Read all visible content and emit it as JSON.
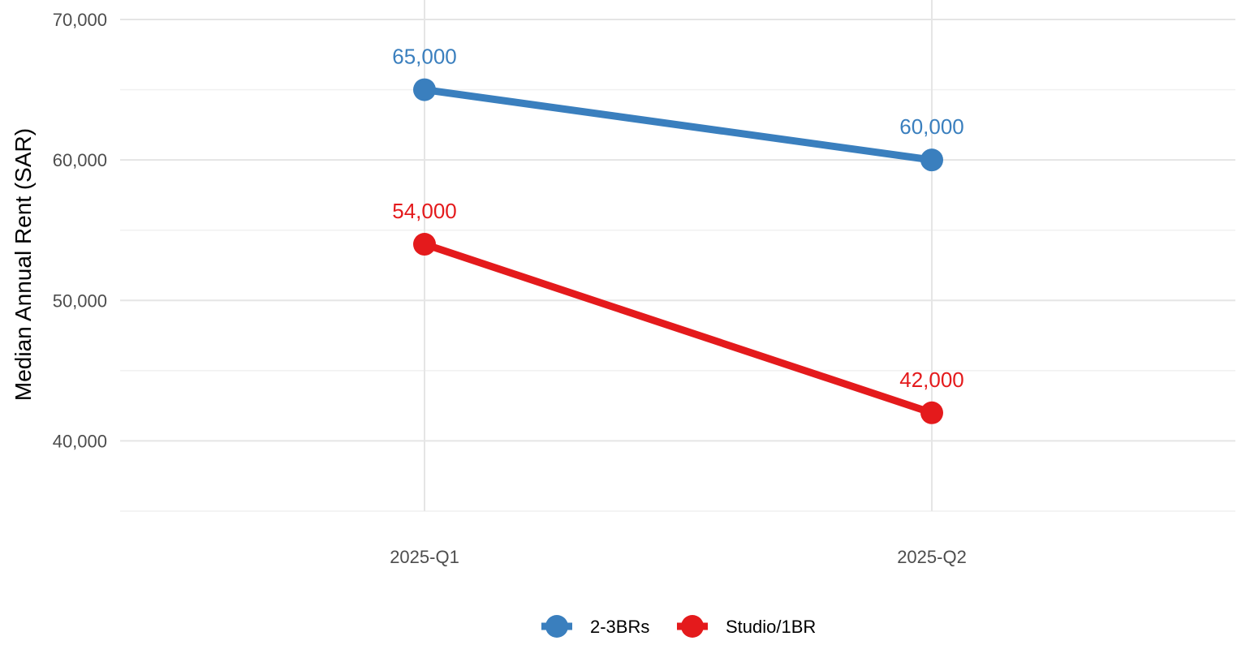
{
  "chart_data": {
    "type": "line",
    "title": "",
    "xlabel": "",
    "ylabel": "Median Annual Rent (SAR)",
    "categories": [
      "2025-Q1",
      "2025-Q2"
    ],
    "ylim": [
      35000,
      70000
    ],
    "y_ticks": [
      40000,
      50000,
      60000,
      70000
    ],
    "y_tick_labels": [
      "40,000",
      "50,000",
      "60,000",
      "70,000"
    ],
    "grid": true,
    "legend_position": "bottom",
    "series": [
      {
        "name": "2-3BRs",
        "color": "#3a7fbe",
        "values": [
          65000,
          60000
        ],
        "labels": [
          "65,000",
          "60,000"
        ]
      },
      {
        "name": "Studio/1BR",
        "color": "#e41a1c",
        "values": [
          54000,
          42000
        ],
        "labels": [
          "54,000",
          "42,000"
        ]
      }
    ]
  }
}
